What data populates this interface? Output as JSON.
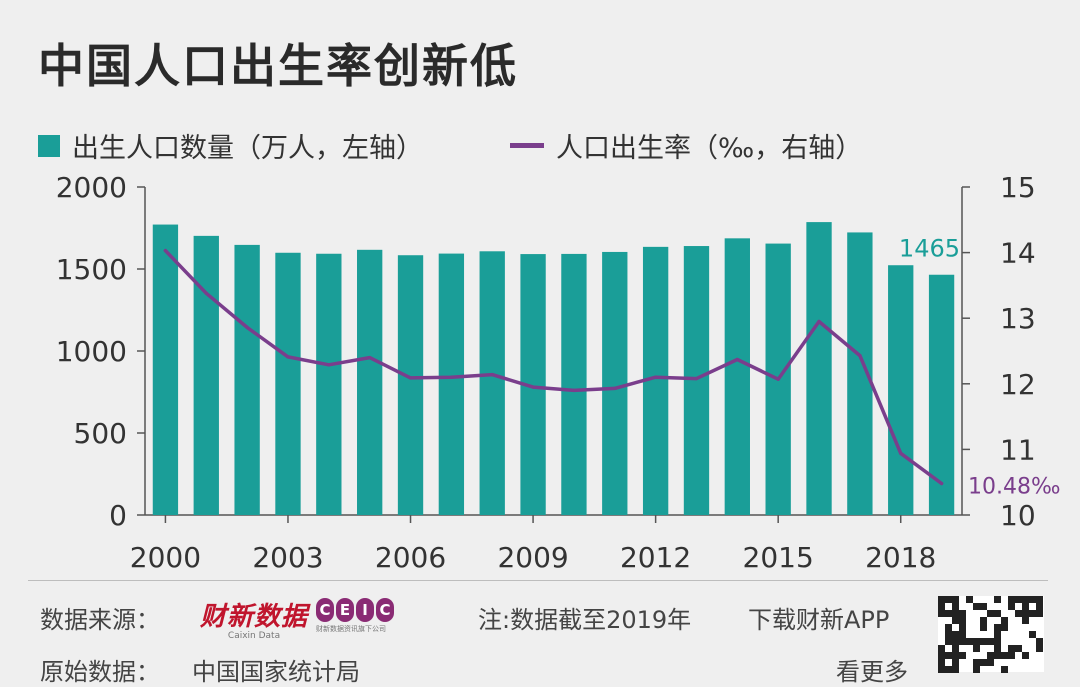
{
  "title": "中国人口出生率创新低",
  "legend": {
    "bar_label": "出生人口数量（万人，左轴）",
    "line_label": "人口出生率（‰，右轴）"
  },
  "colors": {
    "bar": "#1a9e98",
    "line": "#7a3e8c",
    "axis": "#555555",
    "background": "#efefef"
  },
  "chart_data": {
    "type": "bar",
    "categories": [
      "2000",
      "2001",
      "2002",
      "2003",
      "2004",
      "2005",
      "2006",
      "2007",
      "2008",
      "2009",
      "2010",
      "2011",
      "2012",
      "2013",
      "2014",
      "2015",
      "2016",
      "2017",
      "2018",
      "2019"
    ],
    "x_tick_labels": [
      "2000",
      "2003",
      "2006",
      "2009",
      "2012",
      "2015",
      "2018"
    ],
    "series": [
      {
        "name": "出生人口数量（万人，左轴）",
        "type": "bar",
        "axis": "left",
        "values": [
          1771,
          1702,
          1647,
          1599,
          1593,
          1617,
          1584,
          1594,
          1608,
          1591,
          1592,
          1604,
          1635,
          1640,
          1687,
          1655,
          1786,
          1723,
          1523,
          1465
        ]
      },
      {
        "name": "人口出生率（‰，右轴）",
        "type": "line",
        "axis": "right",
        "values": [
          14.03,
          13.38,
          12.86,
          12.41,
          12.29,
          12.4,
          12.09,
          12.1,
          12.14,
          11.95,
          11.9,
          11.93,
          12.1,
          12.08,
          12.37,
          12.07,
          12.95,
          12.43,
          10.94,
          10.48
        ]
      }
    ],
    "left_axis": {
      "ylim": [
        0,
        2000
      ],
      "ticks": [
        "0",
        "500",
        "1000",
        "1500",
        "2000"
      ]
    },
    "right_axis": {
      "ylim": [
        10,
        15
      ],
      "ticks": [
        "10",
        "11",
        "12",
        "13",
        "14",
        "15"
      ]
    },
    "annotations": {
      "bar_last": "1465",
      "line_last": "10.48‰"
    }
  },
  "footer": {
    "source_label": "数据来源：",
    "caixin_logo": "财新数据",
    "caixin_sub": "Caixin Data",
    "ceic_letters": [
      "C",
      "E",
      "I",
      "C"
    ],
    "ceic_sub": "财新数据资讯旗下公司",
    "note": "注:数据截至2019年",
    "download": "下载财新APP",
    "original_label": "原始数据：",
    "original_source": "中国国家统计局",
    "see_more": "看更多"
  }
}
